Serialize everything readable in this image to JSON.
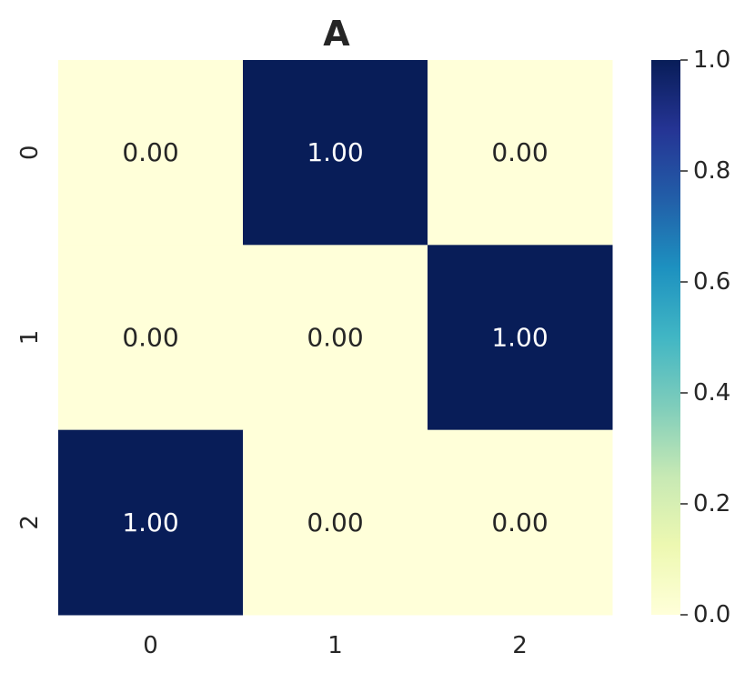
{
  "chart_data": {
    "type": "heatmap",
    "title": "A",
    "x_categories": [
      "0",
      "1",
      "2"
    ],
    "y_categories": [
      "0",
      "1",
      "2"
    ],
    "values": [
      [
        0.0,
        1.0,
        0.0
      ],
      [
        0.0,
        0.0,
        1.0
      ],
      [
        1.0,
        0.0,
        0.0
      ]
    ],
    "annotation_format": "0.00",
    "colormap": "YlGnBu",
    "colorbar": {
      "range": [
        0.0,
        1.0
      ],
      "ticks": [
        0.0,
        0.2,
        0.4,
        0.6,
        0.8,
        1.0
      ],
      "tick_labels": [
        "0.0",
        "0.2",
        "0.4",
        "0.6",
        "0.8",
        "1.0"
      ]
    },
    "colors": {
      "low": "#ffffd9",
      "high": "#081d58",
      "text_dark": "#262626",
      "text_light": "#ffffff"
    }
  }
}
